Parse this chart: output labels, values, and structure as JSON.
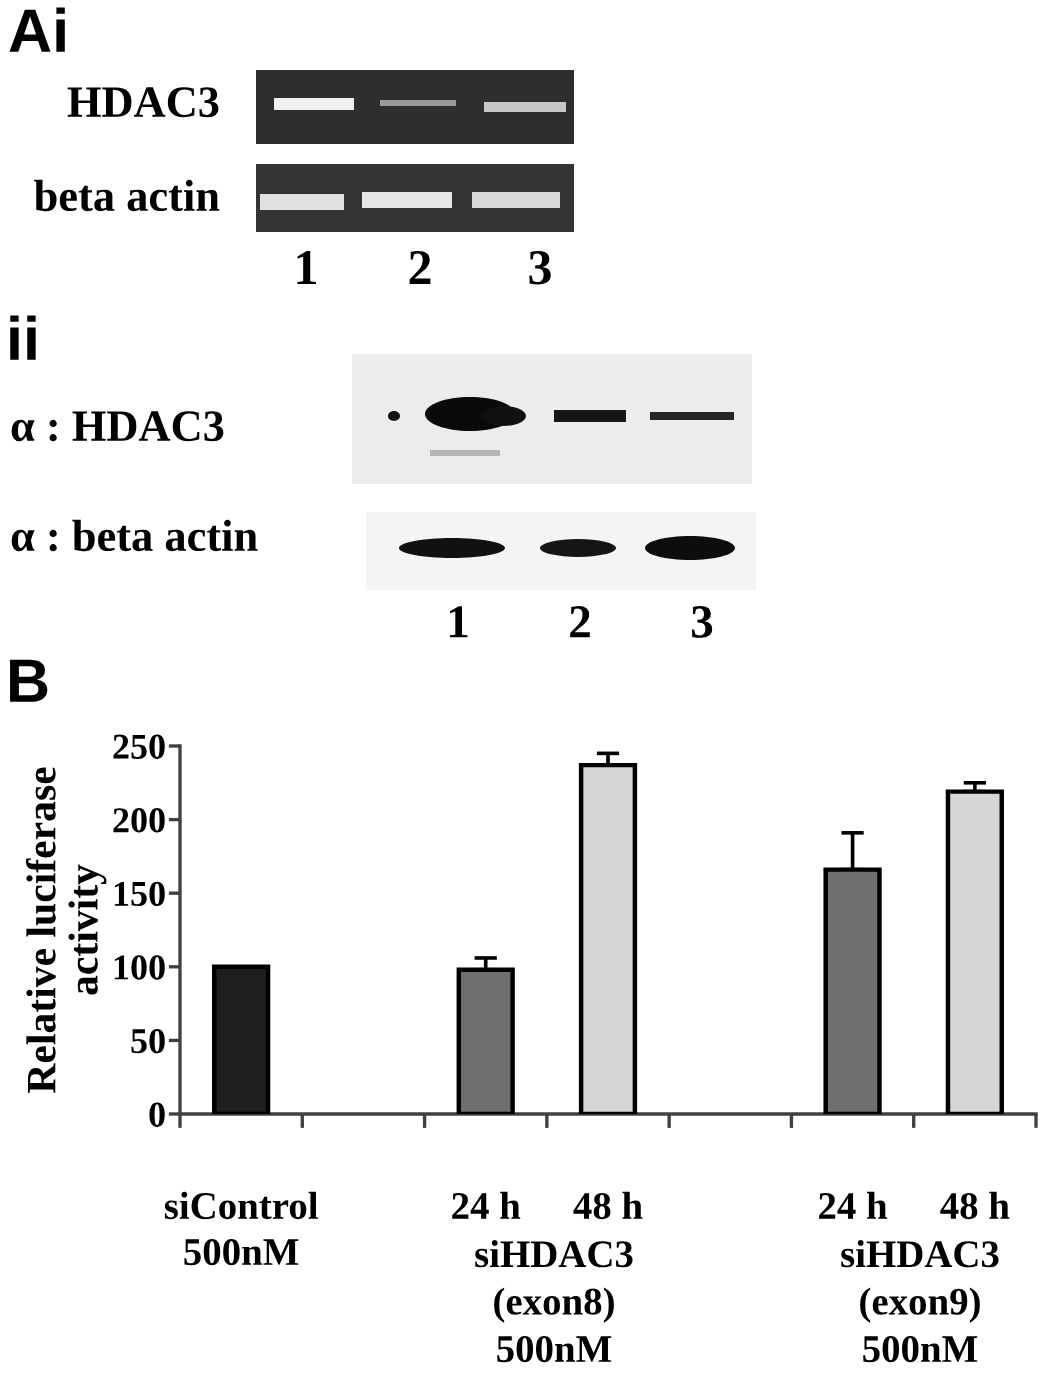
{
  "chart_data": {
    "type": "bar",
    "ylabel": "Relative luciferase\nactivity",
    "categories": [
      "siControl\n500nM",
      null,
      "24 h",
      "48 h",
      null,
      "24 h",
      "48 h"
    ],
    "values": [
      100,
      null,
      98,
      237,
      null,
      166,
      219
    ],
    "errors": [
      null,
      null,
      [
        98,
        106
      ],
      [
        237,
        245
      ],
      null,
      [
        166,
        191
      ],
      [
        219,
        225
      ]
    ],
    "colors": [
      "#1f1f1f",
      null,
      "#6f6f6f",
      "#d6d6d6",
      null,
      "#6f6f6f",
      "#d6d6d6"
    ],
    "ylim": [
      0,
      250
    ],
    "yticks": [
      0,
      50,
      100,
      150,
      200,
      250
    ],
    "grid": false,
    "annotations": [
      "Ai",
      "HDAC3",
      "beta actin",
      "1",
      "2",
      "3",
      "ii",
      "α : HDAC3",
      "α : beta actin",
      "1",
      "2",
      "3",
      "B",
      "siHDAC3\n(exon8)\n500nM",
      "siHDAC3\n(exon9)\n500nM"
    ]
  }
}
